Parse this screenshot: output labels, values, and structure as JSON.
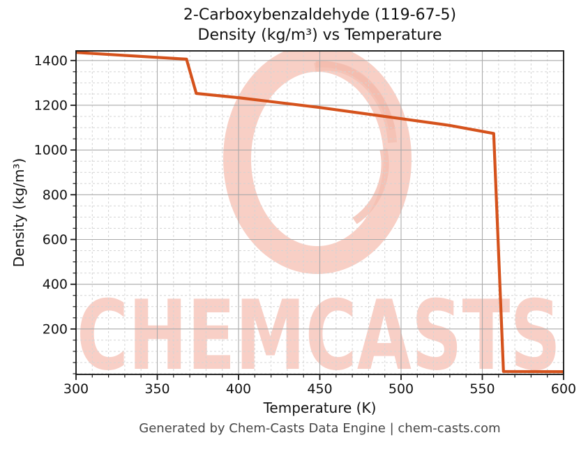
{
  "figure": {
    "title_lines": [
      "2-Carboxybenzaldehyde (119-67-5)",
      "Density (kg/m³) vs Temperature"
    ],
    "footer": "Generated by Chem-Casts Data Engine | chem-casts.com"
  },
  "watermark": {
    "text": "CHEMCASTS",
    "text_color": "#f8cfc6",
    "logo_color": "#f8cfc5",
    "logo_accent": "#f4bdaf"
  },
  "chart_data": {
    "type": "line",
    "title": "2-Carboxybenzaldehyde (119-67-5) Density (kg/m³) vs Temperature",
    "xlabel": "Temperature (K)",
    "ylabel": "Density (kg/m³)",
    "xlim": [
      300,
      600
    ],
    "ylim": [
      -3,
      1443
    ],
    "x_major_ticks": [
      300,
      350,
      400,
      450,
      500,
      550,
      600
    ],
    "x_minor_step": 10,
    "y_major_ticks": [
      200,
      400,
      600,
      800,
      1000,
      1200,
      1400
    ],
    "y_minor_step": 50,
    "grid": {
      "major": true,
      "minor": true
    },
    "legend_position": "none",
    "colors": {
      "line": "#d5521c",
      "grid_major": "#aaaaaa",
      "grid_minor": "#d4d4d4",
      "spine": "#1a1a1a",
      "tick_label": "#111111"
    },
    "series": [
      {
        "name": "Density (kg/m³)",
        "x": [
          300,
          368,
          374,
          400,
          450,
          500,
          530,
          557,
          563,
          600
        ],
        "y": [
          1436,
          1406,
          1253,
          1234,
          1190,
          1140,
          1110,
          1074,
          10,
          9
        ]
      }
    ]
  }
}
